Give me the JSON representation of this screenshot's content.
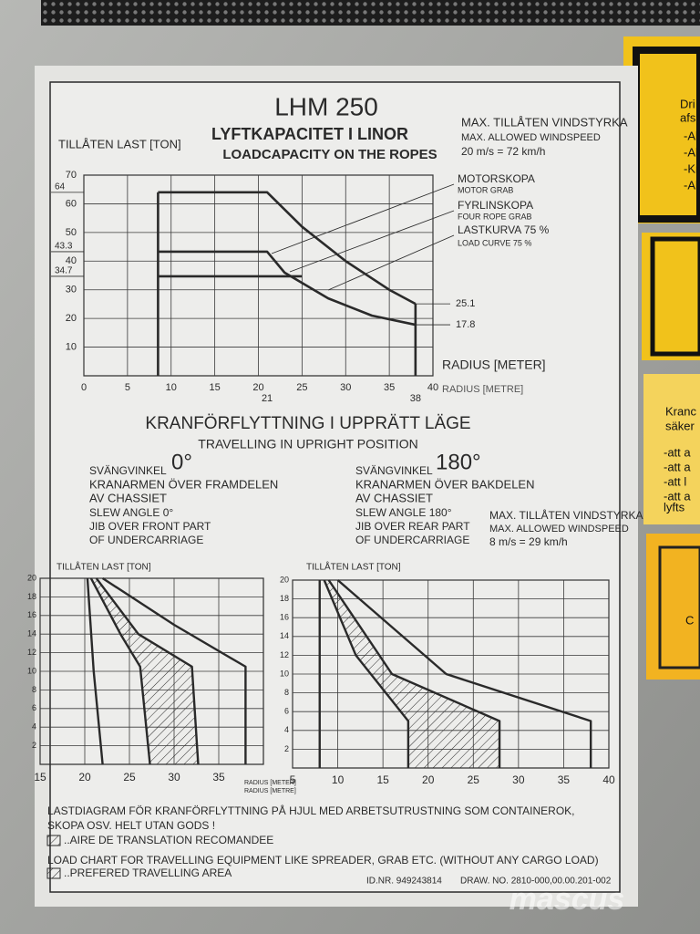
{
  "header": {
    "title": "LHM 250",
    "subtitle_sv": "LYFTKAPACITET I LINOR",
    "subtitle_en": "LOADCAPACITY ON THE ROPES",
    "wind_sv": "MAX. TILLÅTEN VINDSTYRKA",
    "wind_en": "MAX. ALLOWED WINDSPEED",
    "wind_value": "20 m/s = 72 km/h"
  },
  "chart_top": {
    "type": "line",
    "y_label": "TILLÅTEN LAST [TON]",
    "x_label_sv": "RADIUS [METER]",
    "x_label_en": "RADIUS [METRE]",
    "xlim": [
      0,
      40
    ],
    "ylim": [
      0,
      70
    ],
    "xticks": [
      0,
      5,
      10,
      15,
      20,
      25,
      30,
      35,
      40
    ],
    "yticks": [
      10,
      20,
      30,
      40,
      50,
      60,
      70
    ],
    "grid": true,
    "series": [
      {
        "name": "MOTORSKOPA",
        "name_en": "MOTOR GRAB",
        "color": "#2a2a2a",
        "x": [
          8.5,
          21,
          25,
          30,
          35,
          38
        ],
        "values": [
          64,
          64,
          52,
          40,
          30,
          25.1
        ]
      },
      {
        "name": "FYRLINSKOPA",
        "name_en": "FOUR ROPE GRAB",
        "color": "#2a2a2a",
        "x": [
          8.5,
          21,
          23,
          28,
          33,
          38
        ],
        "values": [
          43.3,
          43.3,
          36,
          27,
          21,
          17.8
        ]
      },
      {
        "name": "LASTKURVA 75 %",
        "name_en": "LOAD CURVE 75 %",
        "color": "#2a2a2a",
        "x": [
          8.5,
          21,
          25
        ],
        "values": [
          34.7,
          34.7,
          34.7
        ]
      }
    ]
  },
  "travel": {
    "title_sv": "KRANFÖRFLYTTNING I UPPRÄTT LÄGE",
    "title_en": "TRAVELLING IN UPRIGHT POSITION",
    "front": {
      "label": "SVÄNGVINKEL",
      "angle": "0°",
      "lines": [
        "KRANARMEN ÖVER FRAMDELEN",
        "AV CHASSIET",
        "SLEW ANGLE 0°",
        "JIB OVER FRONT PART",
        "OF UNDERCARRIAGE"
      ]
    },
    "rear": {
      "label": "SVÄNGVINKEL",
      "angle": "180°",
      "lines": [
        "KRANARMEN ÖVER BAKDELEN",
        "AV CHASSIET",
        "SLEW ANGLE 180°",
        "JIB OVER REAR PART",
        "OF UNDERCARRIAGE"
      ]
    },
    "wind": {
      "sv": "MAX. TILLÅTEN VINDSTYRKA",
      "en": "MAX. ALLOWED WINDSPEED",
      "value": "8 m/s = 29 km/h"
    }
  },
  "chart_left": {
    "type": "line",
    "y_label": "TILLÅTEN LAST [TON]",
    "x_label_sv": "RADIUS [METER]",
    "x_label_en": "RADIUS [METRE]",
    "xlim": [
      15,
      40
    ],
    "ylim": [
      0,
      20
    ],
    "xticks": [
      15,
      20,
      25,
      30,
      35
    ],
    "yticks": [
      2,
      4,
      6,
      8,
      10,
      12,
      14,
      16,
      18,
      20
    ],
    "grid": true,
    "hatch": [
      1,
      2
    ],
    "series": [
      {
        "color": "#2a2a2a",
        "x": [
          20.3,
          21,
          22
        ],
        "values": [
          20,
          10,
          0
        ]
      },
      {
        "color": "#2a2a2a",
        "x": [
          20.7,
          24,
          26.2,
          27.3
        ],
        "values": [
          20,
          14,
          10.5,
          0
        ]
      },
      {
        "color": "#2a2a2a",
        "x": [
          21.3,
          26,
          32,
          32.7
        ],
        "values": [
          20,
          14,
          10.5,
          0
        ]
      },
      {
        "color": "#2a2a2a",
        "x": [
          22,
          30,
          38,
          38
        ],
        "values": [
          20,
          15,
          10.5,
          0
        ]
      }
    ]
  },
  "chart_right": {
    "type": "line",
    "y_label": "TILLÅTEN LAST [TON]",
    "xlim": [
      5,
      40
    ],
    "ylim": [
      0,
      20
    ],
    "xticks": [
      5,
      10,
      15,
      20,
      25,
      30,
      35,
      40
    ],
    "yticks": [
      2,
      4,
      6,
      8,
      10,
      12,
      14,
      16,
      18,
      20
    ],
    "grid": true,
    "hatch": [
      1,
      2
    ],
    "series": [
      {
        "color": "#2a2a2a",
        "x": [
          8,
          8
        ],
        "values": [
          20,
          0
        ]
      },
      {
        "color": "#2a2a2a",
        "x": [
          8.5,
          12,
          17.8,
          17.8
        ],
        "values": [
          20,
          12,
          5,
          0
        ]
      },
      {
        "color": "#2a2a2a",
        "x": [
          9,
          16,
          27.9,
          27.9
        ],
        "values": [
          20,
          10,
          5,
          0
        ]
      },
      {
        "color": "#2a2a2a",
        "x": [
          10,
          22,
          38,
          38
        ],
        "values": [
          20,
          10,
          5,
          0
        ]
      }
    ]
  },
  "footer": {
    "line1": "LASTDIAGRAM FÖR KRANFÖRFLYTTNING PÅ HJUL MED ARBETSUTRUSTNING SOM CONTAINEROK,",
    "line2": "SKOPA OSV. HELT UTAN GODS !",
    "hatch_fr": "..AIRE DE TRANSLATION RECOMANDEE",
    "line3": "LOAD CHART FOR TRAVELLING EQUIPMENT LIKE SPREADER, GRAB ETC. (WITHOUT ANY CARGO LOAD)",
    "hatch_en": "..PREFERED TRAVELLING AREA",
    "id": "ID.NR. 949243814",
    "drawing": "DRAW. NO. 2810-000,00.00.201-002"
  },
  "side_notes": [
    "Dri",
    "afs",
    "-Al",
    "-Al",
    "-Kr",
    "-Al",
    "Kranc",
    "säker",
    "-att a",
    "-att a",
    "-att l",
    "-att a",
    "lyfts",
    "C"
  ],
  "watermark": "mascus"
}
